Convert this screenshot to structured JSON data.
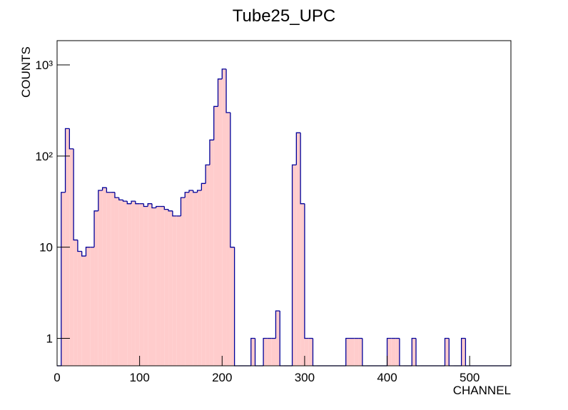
{
  "chart_data": {
    "type": "histogram",
    "title": "Tube25_UPC",
    "xlabel": "CHANNEL",
    "ylabel": "COUNTS",
    "log_y": true,
    "fill_color": "#ffcccc",
    "line_color": "#000099",
    "xlim": [
      0,
      550
    ],
    "xticks": [
      0,
      100,
      200,
      300,
      400,
      500
    ],
    "ylim": [
      0.5,
      1845
    ],
    "yticks": [
      1,
      10,
      {
        "value": 100,
        "label": "10²"
      },
      {
        "value": 1000,
        "label": "10³"
      }
    ],
    "bins": [
      0,
      5,
      10,
      15,
      20,
      25,
      30,
      35,
      40,
      45,
      50,
      55,
      60,
      65,
      70,
      75,
      80,
      85,
      90,
      95,
      100,
      105,
      110,
      115,
      120,
      125,
      130,
      135,
      140,
      145,
      150,
      155,
      160,
      165,
      170,
      175,
      180,
      185,
      190,
      195,
      200,
      205,
      210,
      215,
      220,
      225,
      230,
      235,
      240,
      245,
      250,
      255,
      260,
      265,
      270,
      275,
      280,
      285,
      290,
      295,
      300,
      305,
      310,
      315,
      320,
      325,
      330,
      335,
      340,
      345,
      350,
      355,
      360,
      365,
      370,
      375,
      380,
      385,
      390,
      395,
      400,
      405,
      410,
      415,
      420,
      425,
      430,
      435,
      440,
      445,
      450,
      455,
      460,
      465,
      470,
      475,
      480,
      485,
      490,
      495,
      500,
      505,
      510,
      515,
      520,
      525,
      530,
      535,
      540,
      545,
      550
    ],
    "values": [
      0,
      40,
      200,
      120,
      12,
      9,
      8,
      10,
      10,
      25,
      42,
      45,
      40,
      40,
      35,
      33,
      32,
      30,
      32,
      30,
      30,
      28,
      30,
      27,
      28,
      28,
      26,
      25,
      22,
      22,
      35,
      40,
      42,
      40,
      42,
      50,
      80,
      150,
      350,
      700,
      900,
      300,
      10,
      0,
      0,
      0,
      0,
      1,
      0,
      0,
      1,
      1,
      1,
      2,
      0,
      0,
      0,
      80,
      180,
      30,
      1,
      1,
      0,
      0,
      0,
      0,
      0,
      0,
      0,
      0,
      1,
      1,
      1,
      1,
      0,
      0,
      0,
      0,
      0,
      0,
      1,
      1,
      1,
      0,
      0,
      0,
      1,
      0,
      0,
      0,
      0,
      0,
      0,
      0,
      1,
      0,
      0,
      0,
      1,
      0,
      0,
      0,
      0,
      0,
      0,
      0,
      0,
      0,
      0,
      0
    ]
  }
}
